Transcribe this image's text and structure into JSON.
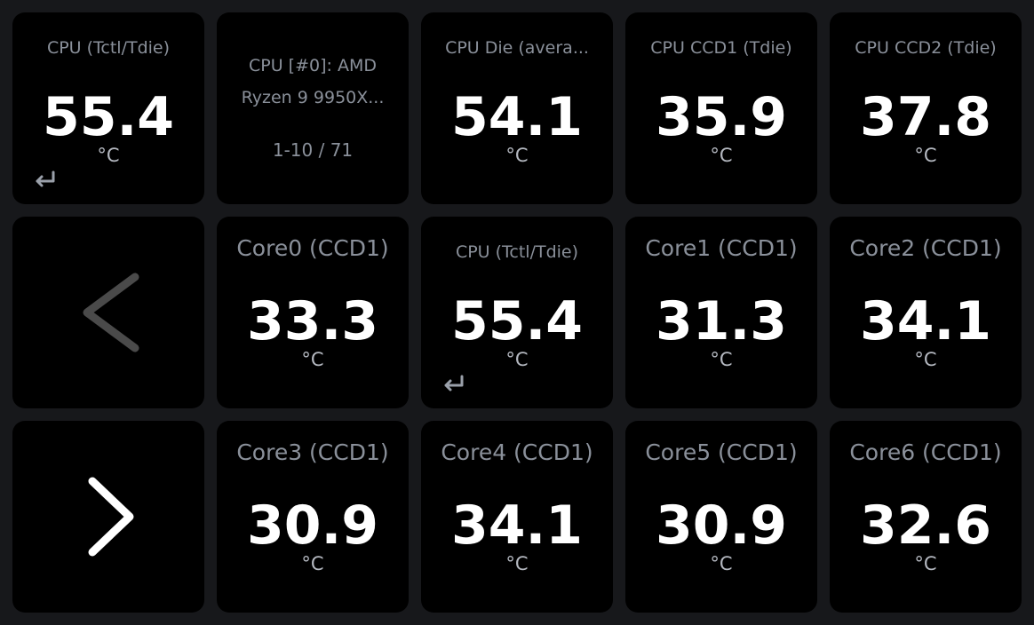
{
  "page_info": {
    "device": "CPU [#0]: AMD Ryzen 9 9950X...",
    "page": "1-10 / 71"
  },
  "sensors": [
    {
      "label": "CPU (Tctl/Tdie)",
      "value": 55.4,
      "unit": "°C"
    },
    {
      "label": "CPU Die (avera...",
      "value": 54.1,
      "unit": "°C"
    },
    {
      "label": "CPU CCD1 (Tdie)",
      "value": 35.9,
      "unit": "°C"
    },
    {
      "label": "CPU CCD2 (Tdie)",
      "value": 37.8,
      "unit": "°C"
    },
    {
      "label": "Core0 (CCD1)",
      "value": 33.3,
      "unit": "°C"
    },
    {
      "label": "CPU (Tctl/Tdie)",
      "value": 55.4,
      "unit": "°C"
    },
    {
      "label": "Core1 (CCD1)",
      "value": 31.3,
      "unit": "°C"
    },
    {
      "label": "Core2 (CCD1)",
      "value": 34.1,
      "unit": "°C"
    },
    {
      "label": "Core3 (CCD1)",
      "value": 30.9,
      "unit": "°C"
    },
    {
      "label": "Core4 (CCD1)",
      "value": 34.1,
      "unit": "°C"
    },
    {
      "label": "Core5 (CCD1)",
      "value": 30.9,
      "unit": "°C"
    },
    {
      "label": "Core6 (CCD1)",
      "value": 32.6,
      "unit": "°C"
    }
  ]
}
